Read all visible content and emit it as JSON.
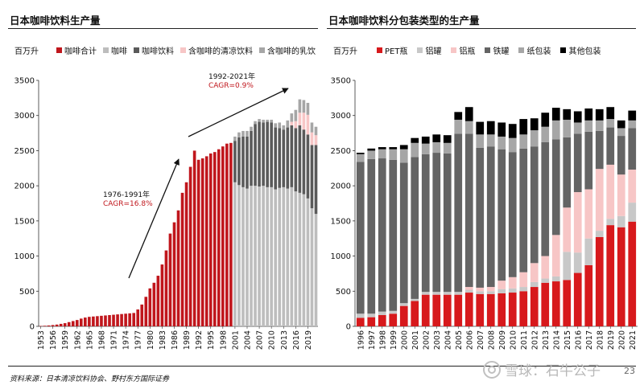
{
  "page": {
    "source": "资料来源：日本清凉饮料协会、野村东方国际证券",
    "page_number": "23",
    "watermark": "雪球：石牛公子"
  },
  "left": {
    "title": "日本咖啡饮料生产量",
    "unit": "百万升",
    "legend": [
      {
        "label": "咖啡合计",
        "color": "#c0161c"
      },
      {
        "label": "咖啡",
        "color": "#bdbdbd"
      },
      {
        "label": "咖啡饮料",
        "color": "#5a5a5a"
      },
      {
        "label": "含咖啡的清凉饮料",
        "color": "#f7c6c6"
      },
      {
        "label": "含咖啡的乳饮",
        "color": "#a6a6a6"
      }
    ],
    "annotations": [
      {
        "label": "1976-1991年",
        "color": "#111111"
      },
      {
        "label": "CAGR=16.8%",
        "color": "#c0161c"
      },
      {
        "label": "1992-2021年",
        "color": "#111111"
      },
      {
        "label": "CAGR=0.9%",
        "color": "#c0161c"
      }
    ]
  },
  "right": {
    "title": "日本咖啡饮料分包装类型的生产量",
    "unit": "百万升",
    "legend": [
      {
        "label": "PET瓶",
        "color": "#d7191c"
      },
      {
        "label": "铝罐",
        "color": "#c8c8c8"
      },
      {
        "label": "铝瓶",
        "color": "#f7c6c6"
      },
      {
        "label": "铁罐",
        "color": "#646464"
      },
      {
        "label": "纸包装",
        "color": "#a6a6a6"
      },
      {
        "label": "其他包装",
        "color": "#000000"
      }
    ]
  },
  "chart_data": [
    {
      "type": "bar",
      "title": "日本咖啡饮料生产量",
      "ylabel": "百万升",
      "ylim": [
        0,
        3500
      ],
      "yticks": [
        0,
        500,
        1000,
        1500,
        2000,
        2500,
        3000,
        3500
      ],
      "x_tick_labels": [
        "1953",
        "1956",
        "1959",
        "1962",
        "1965",
        "1968",
        "1971",
        "1974",
        "1977",
        "1980",
        "1983",
        "1986",
        "1989",
        "1992",
        "1995",
        "1998",
        "2001",
        "2004",
        "2007",
        "2010",
        "2013",
        "2016",
        "2019"
      ],
      "total": {
        "name": "咖啡合计",
        "years": [
          1953,
          1954,
          1955,
          1956,
          1957,
          1958,
          1959,
          1960,
          1961,
          1962,
          1963,
          1964,
          1965,
          1966,
          1967,
          1968,
          1969,
          1970,
          1971,
          1972,
          1973,
          1974,
          1975,
          1976,
          1977,
          1978,
          1979,
          1980,
          1981,
          1982,
          1983,
          1984,
          1985,
          1986,
          1987,
          1988,
          1989,
          1990,
          1991,
          1992,
          1993,
          1994,
          1995,
          1996,
          1997,
          1998,
          1999,
          2000
        ],
        "values": [
          5,
          8,
          12,
          18,
          25,
          35,
          45,
          60,
          75,
          90,
          110,
          125,
          135,
          140,
          145,
          150,
          155,
          160,
          165,
          170,
          175,
          180,
          185,
          190,
          240,
          310,
          420,
          540,
          620,
          720,
          880,
          1080,
          1320,
          1480,
          1650,
          1900,
          2050,
          2270,
          2500,
          2370,
          2390,
          2420,
          2460,
          2480,
          2520,
          2560,
          2600,
          2610
        ]
      },
      "breakdown": {
        "years": [
          2001,
          2002,
          2003,
          2004,
          2005,
          2006,
          2007,
          2008,
          2009,
          2010,
          2011,
          2012,
          2013,
          2014,
          2015,
          2016,
          2017,
          2018,
          2019,
          2020,
          2021
        ],
        "series": [
          {
            "name": "咖啡",
            "values": [
              2050,
              2010,
              1980,
              1960,
              2000,
              2000,
              1990,
              2000,
              1980,
              1980,
              1950,
              1970,
              1980,
              1960,
              1980,
              1920,
              1900,
              1880,
              1820,
              1680,
              1600
            ]
          },
          {
            "name": "咖啡饮料",
            "values": [
              590,
              680,
              720,
              740,
              780,
              880,
              920,
              900,
              930,
              920,
              880,
              850,
              820,
              870,
              880,
              900,
              960,
              920,
              910,
              900,
              980
            ]
          },
          {
            "name": "含咖啡的清凉饮料",
            "values": [
              0,
              0,
              0,
              0,
              0,
              0,
              0,
              0,
              0,
              0,
              0,
              0,
              0,
              0,
              50,
              100,
              180,
              240,
              280,
              180,
              140
            ]
          },
          {
            "name": "含咖啡的乳饮",
            "values": [
              60,
              70,
              80,
              80,
              60,
              40,
              40,
              40,
              30,
              40,
              60,
              80,
              60,
              100,
              120,
              160,
              190,
              180,
              170,
              140,
              120
            ]
          }
        ]
      }
    },
    {
      "type": "bar",
      "stacked": true,
      "title": "日本咖啡饮料分包装类型的生产量",
      "ylabel": "百万升",
      "ylim": [
        0,
        3500
      ],
      "yticks": [
        0,
        500,
        1000,
        1500,
        2000,
        2500,
        3000,
        3500
      ],
      "categories": [
        "1996",
        "1997",
        "1998",
        "1999",
        "2000",
        "2001",
        "2002",
        "2003",
        "2004",
        "2005",
        "2006",
        "2007",
        "2008",
        "2009",
        "2010",
        "2011",
        "2012",
        "2013",
        "2014",
        "2015",
        "2016",
        "2017",
        "2018",
        "2019",
        "2020",
        "2021"
      ],
      "series": [
        {
          "name": "PET瓶",
          "values": [
            120,
            130,
            160,
            180,
            290,
            360,
            450,
            450,
            450,
            450,
            480,
            460,
            460,
            470,
            480,
            500,
            560,
            620,
            640,
            660,
            760,
            870,
            1270,
            1440,
            1410,
            1490
          ]
        },
        {
          "name": "铝罐",
          "values": [
            60,
            50,
            50,
            40,
            40,
            30,
            40,
            40,
            40,
            40,
            40,
            40,
            40,
            60,
            60,
            60,
            70,
            60,
            70,
            400,
            290,
            380,
            90,
            90,
            160,
            270
          ]
        },
        {
          "name": "铝瓶",
          "values": [
            0,
            0,
            0,
            0,
            0,
            0,
            0,
            0,
            0,
            0,
            40,
            50,
            60,
            120,
            160,
            210,
            270,
            320,
            590,
            630,
            860,
            700,
            880,
            770,
            590,
            470
          ]
        },
        {
          "name": "铁罐",
          "values": [
            2160,
            2200,
            2180,
            2150,
            2000,
            2020,
            1960,
            1980,
            1970,
            2250,
            2180,
            1990,
            2000,
            1870,
            1780,
            1760,
            1660,
            1620,
            1360,
            1000,
            830,
            820,
            540,
            530,
            550,
            590
          ]
        },
        {
          "name": "纸包装",
          "values": [
            110,
            120,
            130,
            150,
            190,
            200,
            150,
            150,
            150,
            200,
            180,
            190,
            170,
            180,
            200,
            200,
            230,
            220,
            270,
            250,
            160,
            160,
            150,
            120,
            110,
            110
          ]
        },
        {
          "name": "其他包装",
          "values": [
            20,
            30,
            30,
            30,
            60,
            70,
            100,
            110,
            110,
            110,
            200,
            180,
            190,
            200,
            200,
            220,
            170,
            200,
            180,
            150,
            160,
            170,
            160,
            170,
            110,
            140
          ]
        }
      ]
    }
  ]
}
